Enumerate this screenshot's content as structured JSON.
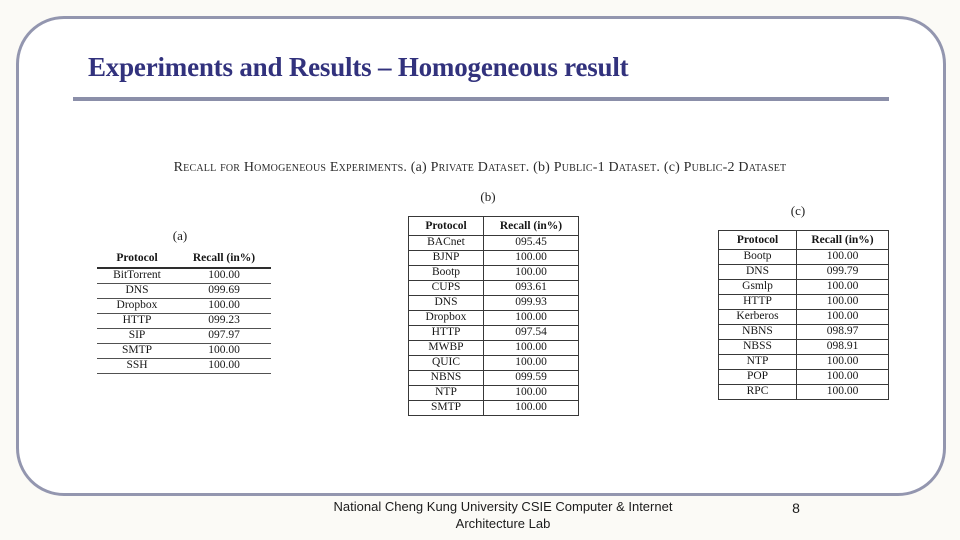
{
  "slide": {
    "title": "Experiments and Results – Homogeneous result",
    "page_number": "8",
    "footer_line1": "National Cheng Kung University CSIE Computer & Internet",
    "footer_line2": "Architecture Lab"
  },
  "figure": {
    "caption": {
      "intro": "Recall for Homogeneous Experiments. ",
      "label_a": "(a)",
      "dataset_a": " Private Dataset. ",
      "label_b": "(b)",
      "dataset_b": " Public-1 Dataset. ",
      "label_c": "(c)",
      "dataset_c": " Public-2 Dataset"
    },
    "tables": [
      {
        "label": "(a)",
        "columns": [
          "Protocol",
          "Recall (in%)"
        ],
        "rows": [
          [
            "BitTorrent",
            "100.00"
          ],
          [
            "DNS",
            "099.69"
          ],
          [
            "Dropbox",
            "100.00"
          ],
          [
            "HTTP",
            "099.23"
          ],
          [
            "SIP",
            "097.97"
          ],
          [
            "SMTP",
            "100.00"
          ],
          [
            "SSH",
            "100.00"
          ]
        ]
      },
      {
        "label": "(b)",
        "columns": [
          "Protocol",
          "Recall (in%)"
        ],
        "rows": [
          [
            "BACnet",
            "095.45"
          ],
          [
            "BJNP",
            "100.00"
          ],
          [
            "Bootp",
            "100.00"
          ],
          [
            "CUPS",
            "093.61"
          ],
          [
            "DNS",
            "099.93"
          ],
          [
            "Dropbox",
            "100.00"
          ],
          [
            "HTTP",
            "097.54"
          ],
          [
            "MWBP",
            "100.00"
          ],
          [
            "QUIC",
            "100.00"
          ],
          [
            "NBNS",
            "099.59"
          ],
          [
            "NTP",
            "100.00"
          ],
          [
            "SMTP",
            "100.00"
          ]
        ]
      },
      {
        "label": "(c)",
        "columns": [
          "Protocol",
          "Recall (in%)"
        ],
        "rows": [
          [
            "Bootp",
            "100.00"
          ],
          [
            "DNS",
            "099.79"
          ],
          [
            "Gsmlp",
            "100.00"
          ],
          [
            "HTTP",
            "100.00"
          ],
          [
            "Kerberos",
            "100.00"
          ],
          [
            "NBNS",
            "098.97"
          ],
          [
            "NBSS",
            "098.91"
          ],
          [
            "NTP",
            "100.00"
          ],
          [
            "POP",
            "100.00"
          ],
          [
            "RPC",
            "100.00"
          ]
        ]
      }
    ]
  },
  "colors": {
    "title_navy": "#32327d",
    "frame_purple": "#9396af",
    "rule_purple": "#8b8fa9",
    "table_border": "#383838"
  }
}
